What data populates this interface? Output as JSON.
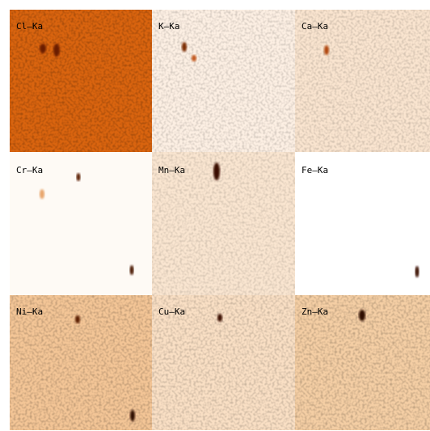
{
  "panels": [
    {
      "label": "Cl—Ka"
    },
    {
      "label": "K—Ka"
    },
    {
      "label": "Ca—Ka"
    },
    {
      "label": "Cr—Ka"
    },
    {
      "label": "Mn—Ka"
    },
    {
      "label": "Fe—Ka"
    },
    {
      "label": "Ni—Ka"
    },
    {
      "label": "Cu—Ka"
    },
    {
      "label": "Zn—Ka"
    }
  ]
}
